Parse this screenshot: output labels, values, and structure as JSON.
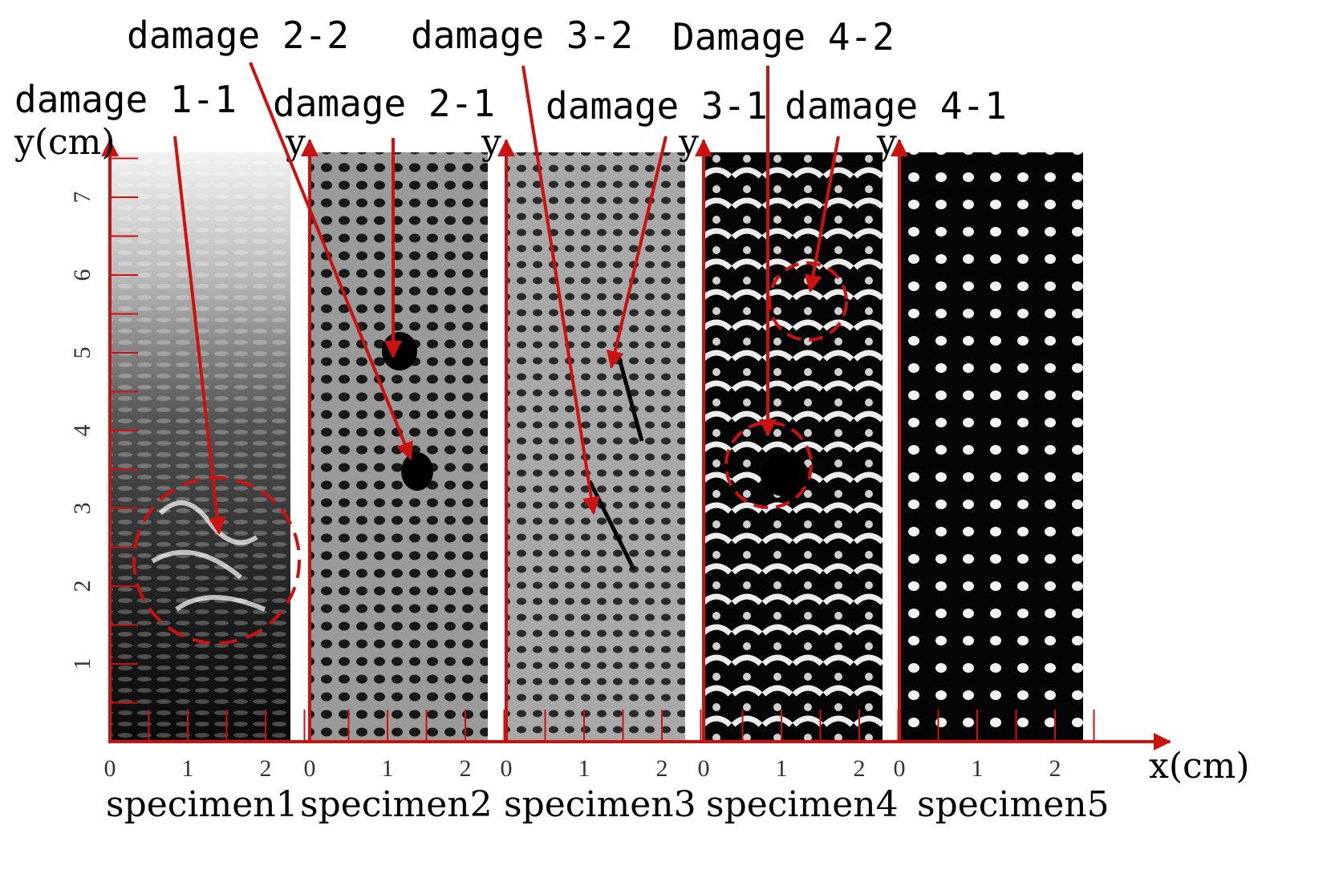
{
  "figure": {
    "specimens": [
      {
        "id": "s1",
        "label": "specimen1",
        "y_label": "y(cm)"
      },
      {
        "id": "s2",
        "label": "specimen2",
        "y_label": "y"
      },
      {
        "id": "s3",
        "label": "specimen3",
        "y_label": "y"
      },
      {
        "id": "s4",
        "label": "specimen4",
        "y_label": "y"
      },
      {
        "id": "s5",
        "label": "specimen5",
        "y_label": "y"
      }
    ],
    "x_axis_label": "x(cm)",
    "x_tick_labels": [
      "0",
      "1",
      "2"
    ],
    "y_tick_labels": [
      "1",
      "2",
      "3",
      "4",
      "5",
      "6",
      "7"
    ],
    "damages": [
      {
        "label": "damage 1-1",
        "specimen": "specimen1",
        "x_cm": 1.4,
        "y_cm": 2.4
      },
      {
        "label": "damage 2-1",
        "specimen": "specimen2",
        "x_cm": 1.1,
        "y_cm": 5.2
      },
      {
        "label": "damage 2-2",
        "specimen": "specimen2",
        "x_cm": 1.3,
        "y_cm": 3.6
      },
      {
        "label": "damage 3-1",
        "specimen": "specimen3",
        "x_cm": 1.4,
        "y_cm": 4.8
      },
      {
        "label": "damage 3-2",
        "specimen": "specimen3",
        "x_cm": 1.1,
        "y_cm": 3.0
      },
      {
        "label": "damage 4-1",
        "specimen": "specimen4",
        "x_cm": 1.4,
        "y_cm": 5.6
      },
      {
        "label": "Damage 4-2",
        "specimen": "specimen4",
        "x_cm": 0.9,
        "y_cm": 3.5
      }
    ],
    "colors": {
      "annotation": "#cc1111",
      "axis": "#cc1111",
      "text": "#000000"
    }
  }
}
